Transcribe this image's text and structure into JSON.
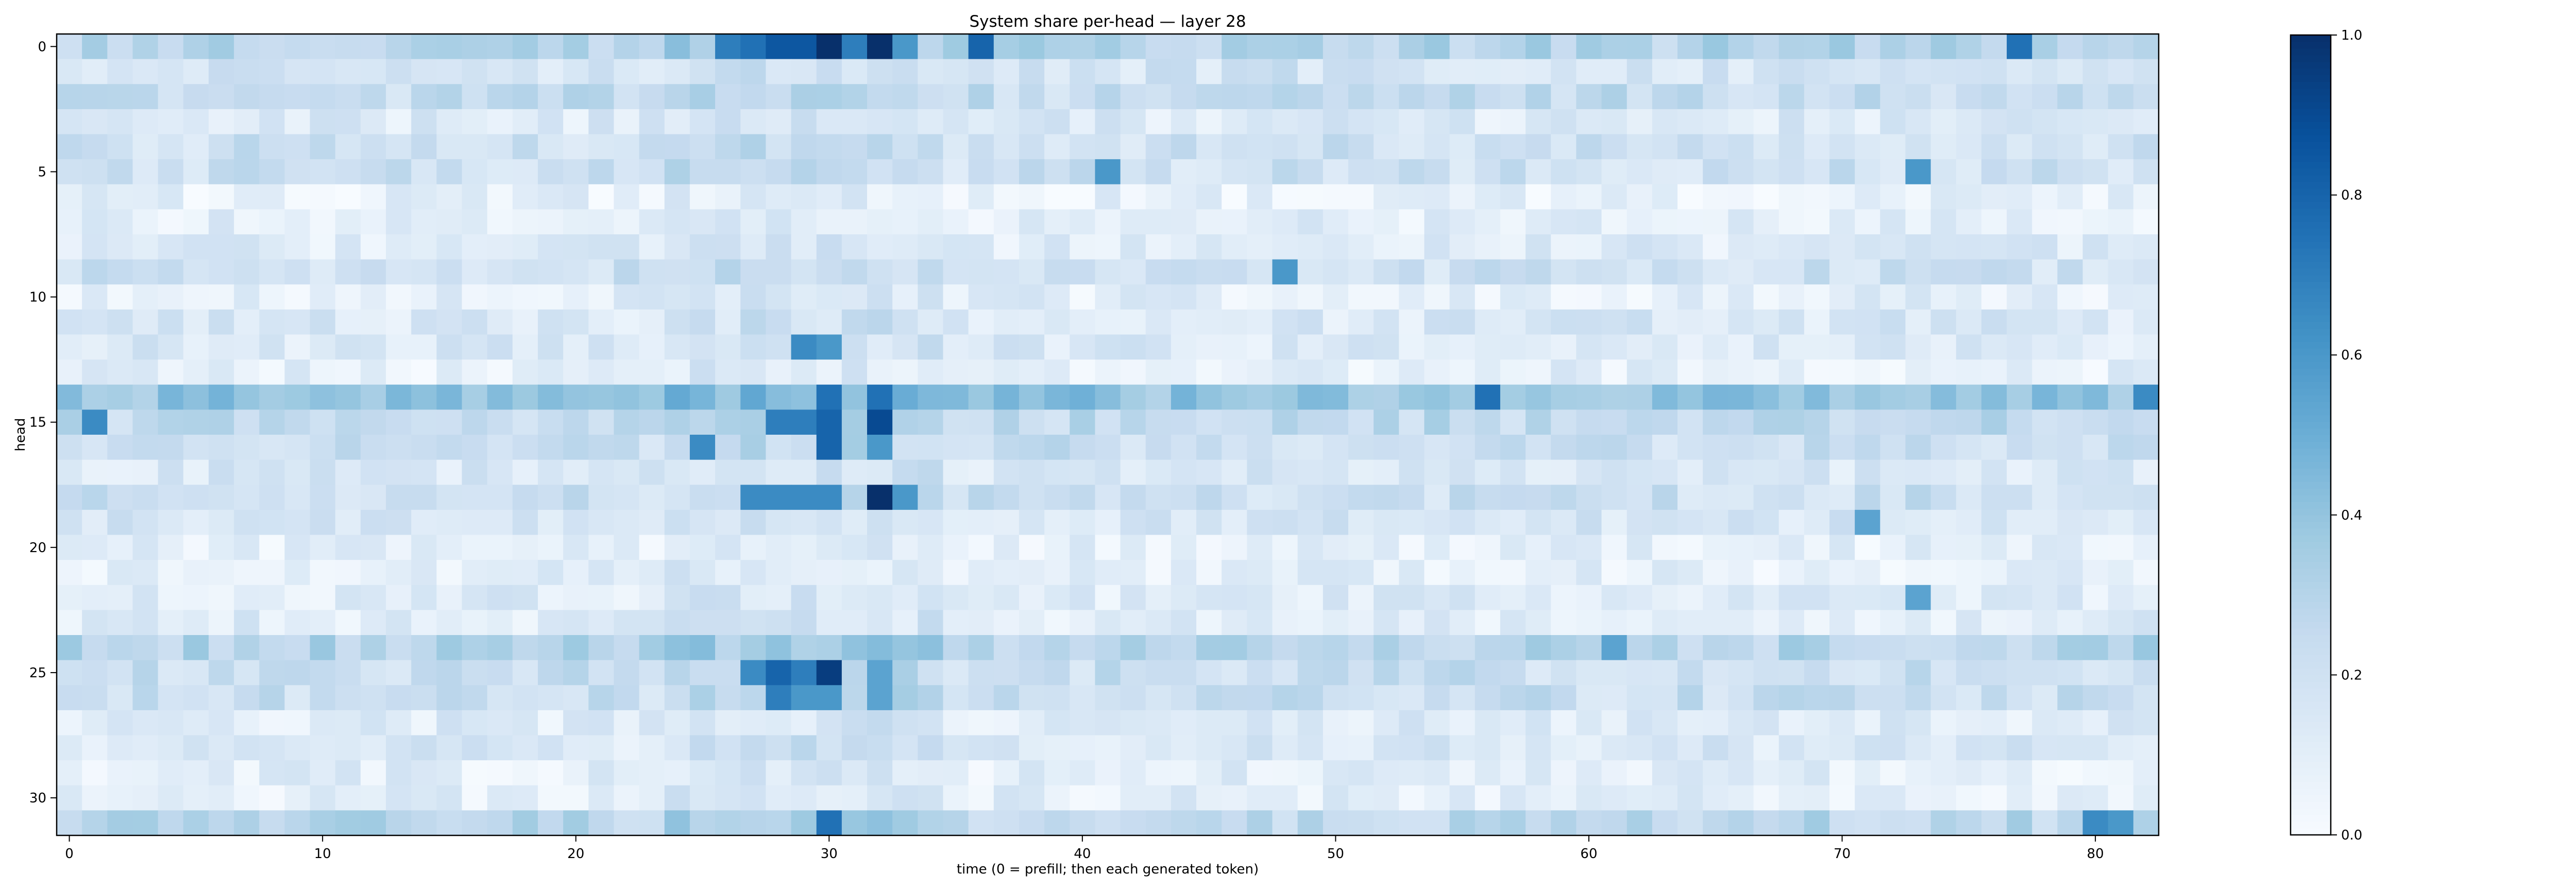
{
  "chart_data": {
    "type": "heatmap",
    "title": "System share per-head — layer 28",
    "xlabel": "time (0 = prefill; then each generated token)",
    "ylabel": "head",
    "x_ticks": [
      0,
      10,
      20,
      30,
      40,
      50,
      60,
      70,
      80
    ],
    "y_ticks": [
      0,
      5,
      10,
      15,
      20,
      25,
      30
    ],
    "n_rows": 32,
    "n_cols": 83,
    "colormap": "Blues",
    "colorbar": {
      "ticks": [
        "0.0",
        "0.2",
        "0.4",
        "0.6",
        "0.8",
        "1.0"
      ],
      "range": [
        0,
        1
      ]
    },
    "row_baselines": [
      0.3,
      0.18,
      0.24,
      0.13,
      0.2,
      0.2,
      0.08,
      0.1,
      0.12,
      0.2,
      0.1,
      0.15,
      0.14,
      0.09,
      0.4,
      0.26,
      0.22,
      0.15,
      0.21,
      0.16,
      0.09,
      0.09,
      0.12,
      0.12,
      0.3,
      0.22,
      0.22,
      0.12,
      0.15,
      0.1,
      0.1,
      0.28
    ],
    "highlights": [
      {
        "row": 0,
        "col": 28,
        "value": 0.85
      },
      {
        "row": 0,
        "col": 29,
        "value": 0.85
      },
      {
        "row": 0,
        "col": 30,
        "value": 1.0
      },
      {
        "row": 0,
        "col": 31,
        "value": 0.7
      },
      {
        "row": 0,
        "col": 32,
        "value": 1.0
      },
      {
        "row": 0,
        "col": 33,
        "value": 0.6
      },
      {
        "row": 0,
        "col": 27,
        "value": 0.75
      },
      {
        "row": 0,
        "col": 26,
        "value": 0.7
      },
      {
        "row": 0,
        "col": 36,
        "value": 0.8
      },
      {
        "row": 0,
        "col": 77,
        "value": 0.75
      },
      {
        "row": 5,
        "col": 41,
        "value": 0.6
      },
      {
        "row": 5,
        "col": 73,
        "value": 0.6
      },
      {
        "row": 9,
        "col": 48,
        "value": 0.6
      },
      {
        "row": 12,
        "col": 29,
        "value": 0.65
      },
      {
        "row": 12,
        "col": 30,
        "value": 0.6
      },
      {
        "row": 14,
        "col": 30,
        "value": 0.75
      },
      {
        "row": 14,
        "col": 32,
        "value": 0.75
      },
      {
        "row": 14,
        "col": 56,
        "value": 0.75
      },
      {
        "row": 14,
        "col": 82,
        "value": 0.65
      },
      {
        "row": 15,
        "col": 1,
        "value": 0.65
      },
      {
        "row": 15,
        "col": 28,
        "value": 0.7
      },
      {
        "row": 15,
        "col": 29,
        "value": 0.7
      },
      {
        "row": 15,
        "col": 30,
        "value": 0.8
      },
      {
        "row": 15,
        "col": 32,
        "value": 0.9
      },
      {
        "row": 16,
        "col": 25,
        "value": 0.65
      },
      {
        "row": 16,
        "col": 30,
        "value": 0.8
      },
      {
        "row": 16,
        "col": 32,
        "value": 0.6
      },
      {
        "row": 18,
        "col": 27,
        "value": 0.65
      },
      {
        "row": 18,
        "col": 28,
        "value": 0.65
      },
      {
        "row": 18,
        "col": 29,
        "value": 0.65
      },
      {
        "row": 18,
        "col": 30,
        "value": 0.65
      },
      {
        "row": 18,
        "col": 32,
        "value": 1.0
      },
      {
        "row": 18,
        "col": 33,
        "value": 0.6
      },
      {
        "row": 19,
        "col": 71,
        "value": 0.55
      },
      {
        "row": 22,
        "col": 73,
        "value": 0.55
      },
      {
        "row": 24,
        "col": 61,
        "value": 0.55
      },
      {
        "row": 25,
        "col": 27,
        "value": 0.65
      },
      {
        "row": 25,
        "col": 28,
        "value": 0.8
      },
      {
        "row": 25,
        "col": 29,
        "value": 0.7
      },
      {
        "row": 25,
        "col": 30,
        "value": 0.95
      },
      {
        "row": 25,
        "col": 32,
        "value": 0.55
      },
      {
        "row": 26,
        "col": 28,
        "value": 0.7
      },
      {
        "row": 26,
        "col": 29,
        "value": 0.6
      },
      {
        "row": 26,
        "col": 30,
        "value": 0.6
      },
      {
        "row": 26,
        "col": 32,
        "value": 0.55
      },
      {
        "row": 31,
        "col": 30,
        "value": 0.75
      },
      {
        "row": 31,
        "col": 80,
        "value": 0.65
      },
      {
        "row": 31,
        "col": 81,
        "value": 0.6
      }
    ]
  }
}
